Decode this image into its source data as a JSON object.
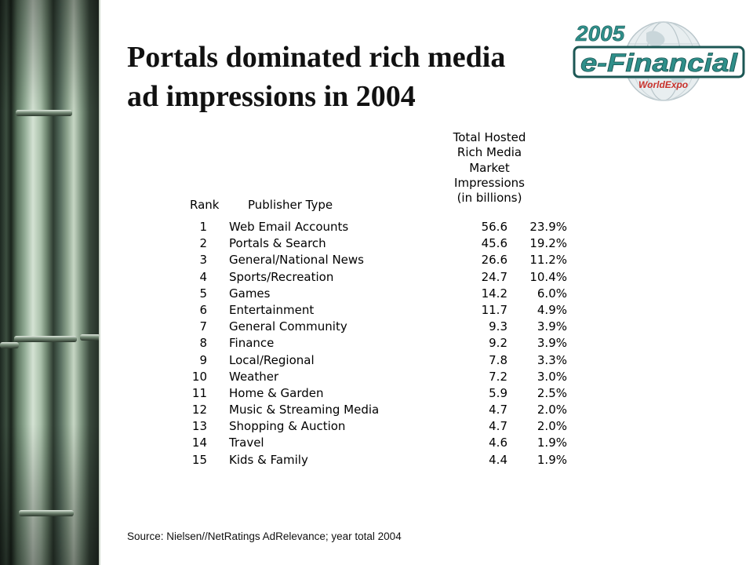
{
  "slide": {
    "title_line1": "Portals dominated rich media",
    "title_line2": "ad impressions in 2004",
    "source": "Source: Nielsen//NetRatings AdRelevance; year total 2004"
  },
  "logo": {
    "year": "2005",
    "name": "e-Financial",
    "sub": "WorldExpo",
    "colors": {
      "teal": "#2f8f8a",
      "dark": "#1c5754",
      "red": "#c8312b",
      "globe": "#e8eef0"
    }
  },
  "table": {
    "headers": {
      "rank": "Rank",
      "publisher_type": "Publisher Type",
      "impressions_lines": [
        "Total Hosted",
        "Rich Media",
        "Market",
        "Impressions",
        "(in billions)"
      ]
    },
    "rows": [
      {
        "rank": "1",
        "type": "Web Email Accounts",
        "value": "56.6",
        "pct": "23.9%"
      },
      {
        "rank": "2",
        "type": "Portals & Search",
        "value": "45.6",
        "pct": "19.2%"
      },
      {
        "rank": "3",
        "type": "General/National News",
        "value": "26.6",
        "pct": "11.2%"
      },
      {
        "rank": "4",
        "type": "Sports/Recreation",
        "value": "24.7",
        "pct": "10.4%"
      },
      {
        "rank": "5",
        "type": "Games",
        "value": "14.2",
        "pct": "6.0%"
      },
      {
        "rank": "6",
        "type": "Entertainment",
        "value": "11.7",
        "pct": "4.9%"
      },
      {
        "rank": "7",
        "type": "General Community",
        "value": "9.3",
        "pct": "3.9%"
      },
      {
        "rank": "8",
        "type": "Finance",
        "value": "9.2",
        "pct": "3.9%"
      },
      {
        "rank": "9",
        "type": "Local/Regional",
        "value": "7.8",
        "pct": "3.3%"
      },
      {
        "rank": "10",
        "type": "Weather",
        "value": "7.2",
        "pct": "3.0%"
      },
      {
        "rank": "11",
        "type": "Home & Garden",
        "value": "5.9",
        "pct": "2.5%"
      },
      {
        "rank": "12",
        "type": "Music & Streaming Media",
        "value": "4.7",
        "pct": "2.0%"
      },
      {
        "rank": "13",
        "type": "Shopping & Auction",
        "value": "4.7",
        "pct": "2.0%"
      },
      {
        "rank": "14",
        "type": "Travel",
        "value": "4.6",
        "pct": "1.9%"
      },
      {
        "rank": "15",
        "type": "Kids & Family",
        "value": "4.4",
        "pct": "1.9%"
      }
    ]
  }
}
